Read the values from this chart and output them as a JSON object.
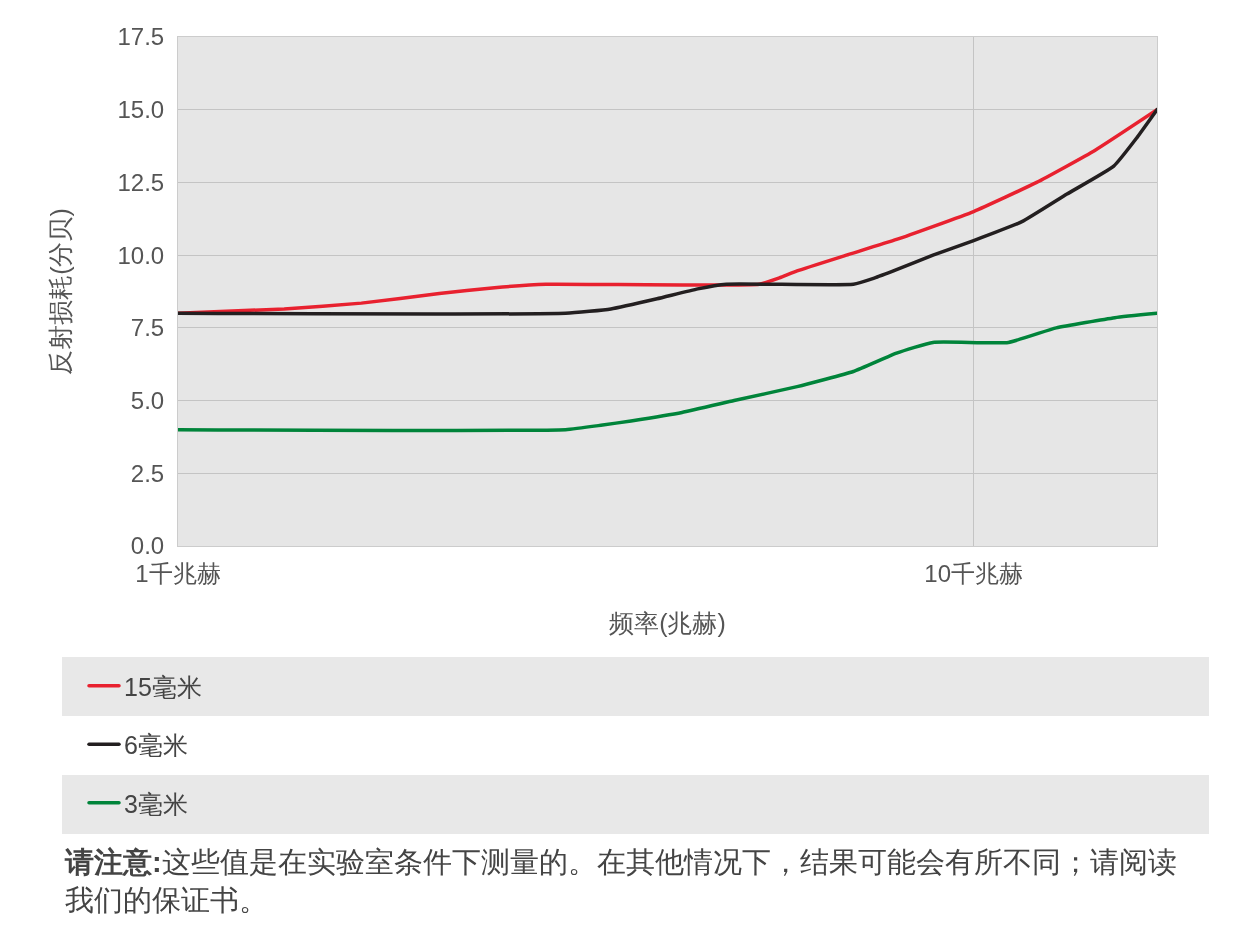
{
  "chart_data": {
    "type": "line",
    "xlabel": "频率(兆赫)",
    "ylabel": "反射损耗(分贝)",
    "log": "x",
    "xlim": [
      1,
      17
    ],
    "xticks": [
      {
        "value": 1,
        "label": "1千兆赫"
      },
      {
        "value": 10,
        "label": "10千兆赫"
      }
    ],
    "ylim": [
      0,
      17.5
    ],
    "yticks": [
      {
        "value": 0,
        "label": "0.0"
      },
      2.5,
      {
        "value": 5,
        "label": "5.0"
      },
      7.5,
      {
        "value": 10,
        "label": "10.0"
      },
      12.5,
      {
        "value": 15,
        "label": "15.0"
      },
      17.5
    ],
    "grid": true,
    "legend": "bottom",
    "series": [
      {
        "name": "15毫米",
        "color": "#e8212f",
        "x": [
          1,
          1.36,
          1.7,
          2.13,
          2.5,
          2.9,
          5.38,
          5.7,
          6,
          6.92,
          8,
          10,
          12,
          14.2,
          17
        ],
        "values": [
          8.0,
          8.15,
          8.35,
          8.68,
          8.88,
          9.0,
          9.0,
          9.22,
          9.46,
          10.0,
          10.54,
          11.5,
          12.5,
          13.6,
          15.0
        ]
      },
      {
        "name": "6毫米",
        "color": "#231f20",
        "x": [
          1,
          3.07,
          3.5,
          4,
          4.5,
          4.89,
          7.06,
          7.5,
          8,
          8.89,
          10,
          11.5,
          13.1,
          15,
          16,
          17
        ],
        "values": [
          8.0,
          8.0,
          8.15,
          8.5,
          8.84,
          9.0,
          9.0,
          9.21,
          9.5,
          10.0,
          10.5,
          11.15,
          12.1,
          13.06,
          14.0,
          15.0
        ]
      },
      {
        "name": "3毫米",
        "color": "#00843a",
        "x": [
          1,
          3.07,
          3.4,
          3.71,
          4.3,
          5,
          6,
          7.06,
          8,
          8.89,
          11.06,
          12.7,
          15.05,
          17
        ],
        "values": [
          4.0,
          4.0,
          4.15,
          4.3,
          4.59,
          5.0,
          5.48,
          6.0,
          6.63,
          7.0,
          7.0,
          7.5,
          7.85,
          8.0
        ]
      }
    ],
    "annotations": [
      "请注意:这些值是在实验室条件下测量的。在其他情况下，结果可能会有所不同；请阅读我们的保证书。"
    ]
  }
}
